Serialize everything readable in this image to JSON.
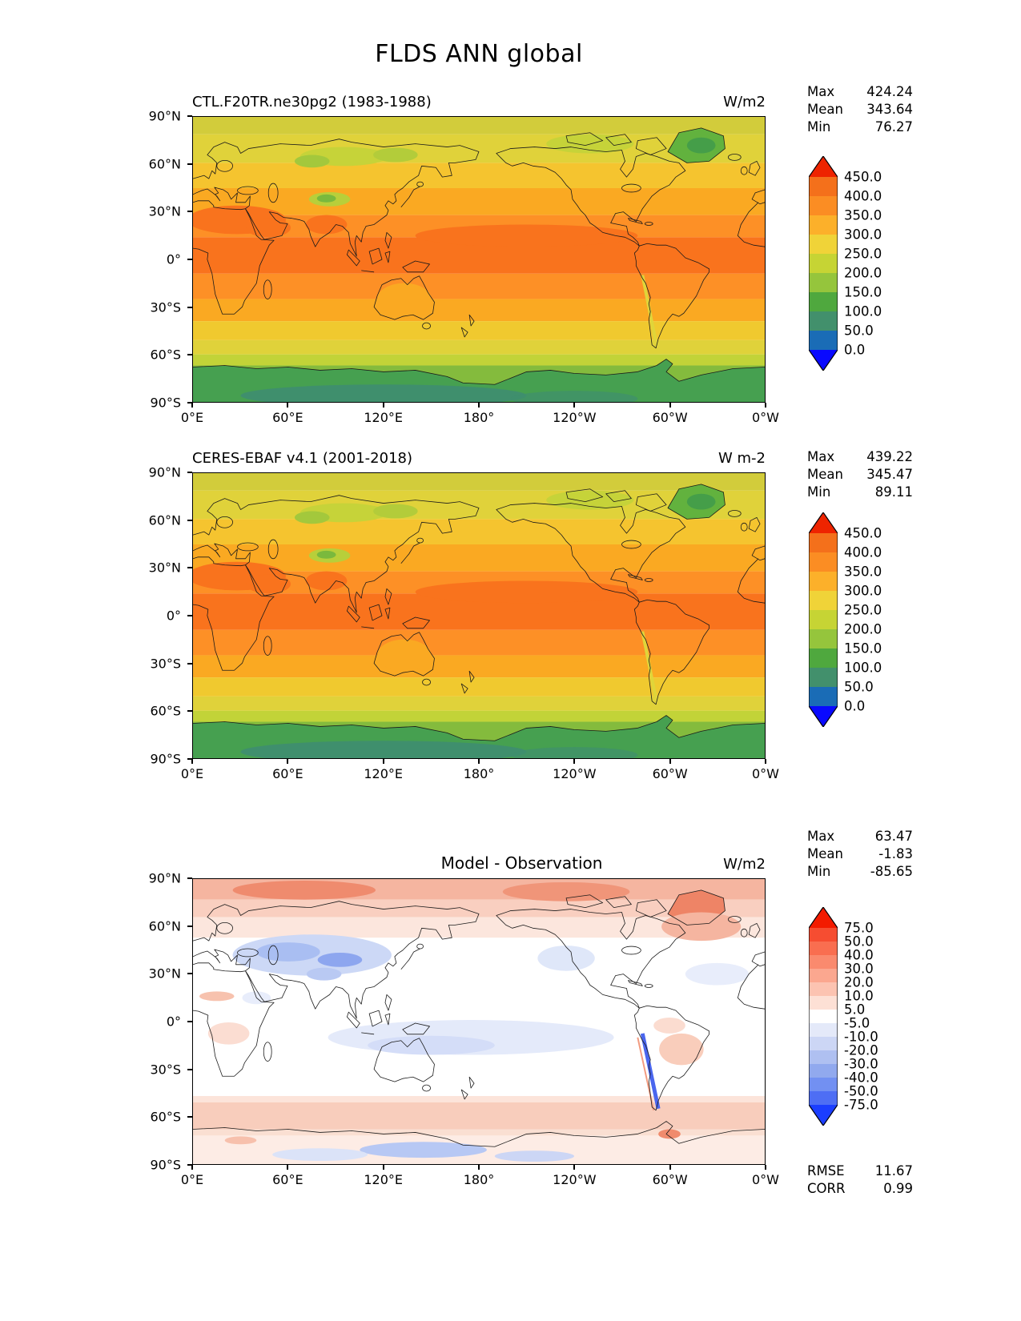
{
  "figure_title": "FLDS ANN global",
  "chart_data": [
    {
      "type": "heatmap",
      "subtype": "filled-contour global latitude-longitude map",
      "title": "CTL.F20TR.ne30pg2 (1983-1988)",
      "units": "W/m2",
      "stats": [
        {
          "label": "Max",
          "value": "424.24"
        },
        {
          "label": "Mean",
          "value": "343.64"
        },
        {
          "label": "Min",
          "value": "76.27"
        }
      ],
      "colorbar": {
        "boundary_labels": [
          "450.0",
          "400.0",
          "350.0",
          "300.0",
          "250.0",
          "200.0",
          "150.0",
          "100.0",
          "50.0",
          "0.0"
        ],
        "band_colors": [
          "#f4701b",
          "#fb8d23",
          "#fcb02a",
          "#f0d338",
          "#c6d434",
          "#95c53c",
          "#4fa83e",
          "#42906c",
          "#1a6cb6"
        ],
        "arrow_top_color": "#ee2400",
        "arrow_bottom_color": "#0909ff",
        "band_height": 24
      },
      "x_ticks": [
        "0°E",
        "60°E",
        "120°E",
        "180°",
        "120°W",
        "60°W",
        "0°W"
      ],
      "y_ticks": [
        "90°N",
        "60°N",
        "30°N",
        "0°",
        "30°S",
        "60°S",
        "90°S"
      ]
    },
    {
      "type": "heatmap",
      "subtype": "filled-contour global latitude-longitude map",
      "title": "CERES-EBAF v4.1 (2001-2018)",
      "units": "W m-2",
      "stats": [
        {
          "label": "Max",
          "value": "439.22"
        },
        {
          "label": "Mean",
          "value": "345.47"
        },
        {
          "label": "Min",
          "value": "89.11"
        }
      ],
      "colorbar": {
        "boundary_labels": [
          "450.0",
          "400.0",
          "350.0",
          "300.0",
          "250.0",
          "200.0",
          "150.0",
          "100.0",
          "50.0",
          "0.0"
        ],
        "band_colors": [
          "#f4701b",
          "#fb8d23",
          "#fcb02a",
          "#f0d338",
          "#c6d434",
          "#95c53c",
          "#4fa83e",
          "#42906c",
          "#1a6cb6"
        ],
        "arrow_top_color": "#ee2400",
        "arrow_bottom_color": "#0909ff",
        "band_height": 24
      },
      "x_ticks": [
        "0°E",
        "60°E",
        "120°E",
        "180°",
        "120°W",
        "60°W",
        "0°W"
      ],
      "y_ticks": [
        "90°N",
        "60°N",
        "30°N",
        "0°",
        "30°S",
        "60°S",
        "90°S"
      ]
    },
    {
      "type": "heatmap",
      "subtype": "model-minus-observation difference map",
      "title": "Model - Observation",
      "units": "W/m2",
      "stats": [
        {
          "label": "Max",
          "value": "63.47"
        },
        {
          "label": "Mean",
          "value": "-1.83"
        },
        {
          "label": "Min",
          "value": "-85.65"
        }
      ],
      "extra_stats": [
        {
          "label": "RMSE",
          "value": "11.67"
        },
        {
          "label": "CORR",
          "value": "0.99"
        }
      ],
      "colorbar": {
        "boundary_labels": [
          "75.0",
          "50.0",
          "40.0",
          "30.0",
          "20.0",
          "10.0",
          "5.0",
          "-5.0",
          "-10.0",
          "-20.0",
          "-30.0",
          "-40.0",
          "-50.0",
          "-75.0"
        ],
        "band_colors": [
          "#f64d31",
          "#f96e50",
          "#fa8a6e",
          "#fba78f",
          "#fcc3b1",
          "#fde0d5",
          "#ffffff",
          "#e4e9f9",
          "#ccd6f5",
          "#afc0f1",
          "#91a9ee",
          "#7290f2",
          "#4e6ef4"
        ],
        "arrow_top_color": "#f31b00",
        "arrow_bottom_color": "#1b3eff",
        "band_height": 17
      },
      "x_ticks": [
        "0°E",
        "60°E",
        "120°E",
        "180°",
        "120°W",
        "60°W",
        "0°W"
      ],
      "y_ticks": [
        "90°N",
        "60°N",
        "30°N",
        "0°",
        "30°S",
        "60°S",
        "90°S"
      ]
    }
  ]
}
